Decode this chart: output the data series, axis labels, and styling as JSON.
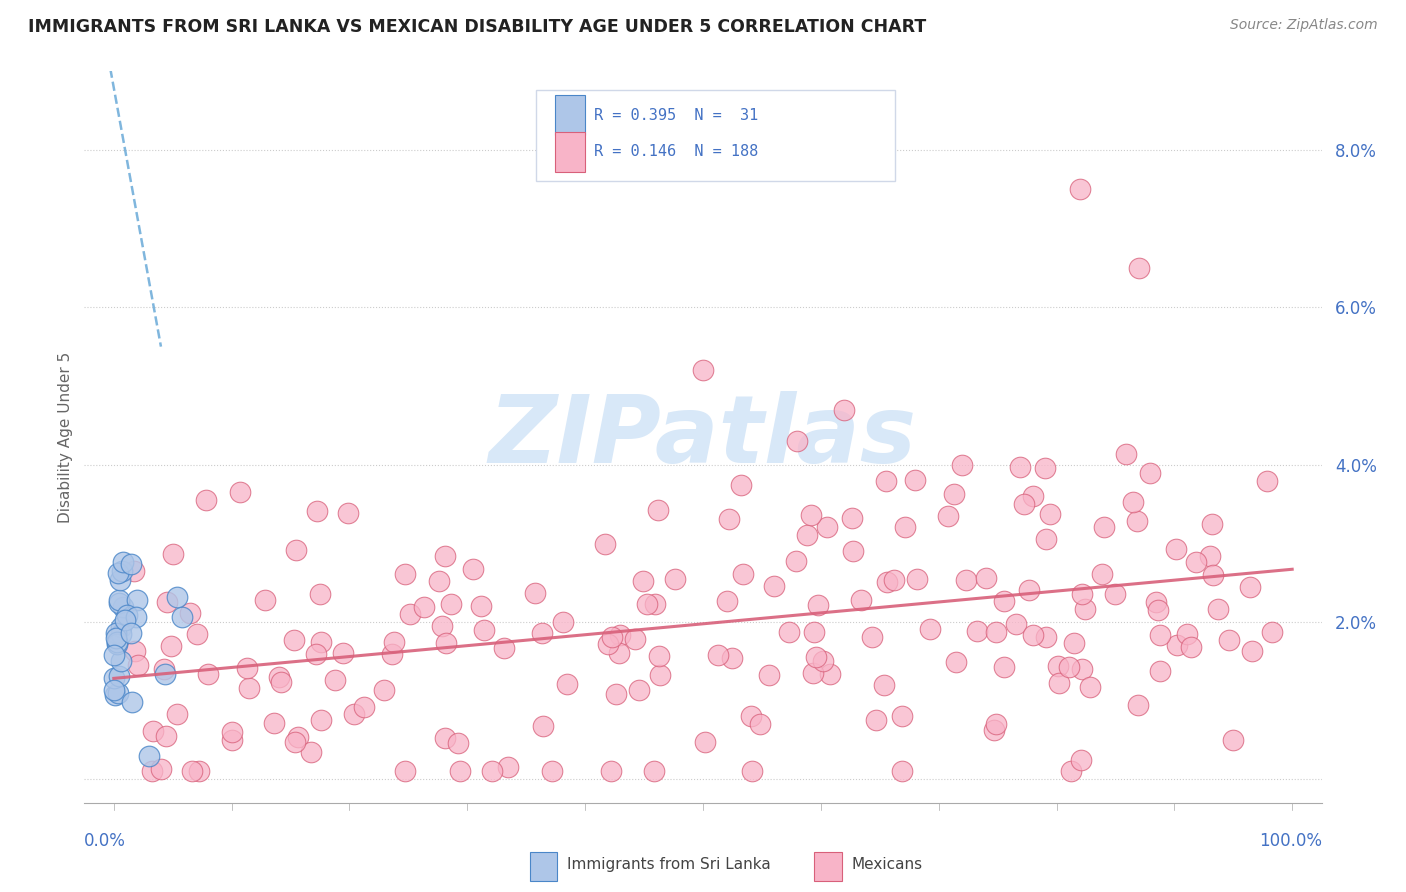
{
  "title": "IMMIGRANTS FROM SRI LANKA VS MEXICAN DISABILITY AGE UNDER 5 CORRELATION CHART",
  "source": "Source: ZipAtlas.com",
  "ylabel": "Disability Age Under 5",
  "sri_lanka_color": "#aec6e8",
  "sri_lanka_edge": "#4a86c8",
  "mexican_color": "#f8b4c8",
  "mexican_edge": "#d8607a",
  "trendline_sri_color": "#6aaad8",
  "trendline_mex_color": "#d8607a",
  "background_color": "#ffffff",
  "watermark_color": "#d8e8f8",
  "legend_box_color": "#f5f8ff",
  "legend_border_color": "#d0d8e8",
  "text_color_blue": "#4472c4",
  "title_color": "#222222",
  "source_color": "#888888",
  "ylabel_color": "#666666",
  "grid_color": "#cccccc",
  "axis_color": "#aaaaaa",
  "xlim": [
    -0.01,
    1.01
  ],
  "ylim": [
    -0.002,
    0.09
  ],
  "yticks": [
    0.0,
    0.02,
    0.04,
    0.06,
    0.08
  ],
  "ytick_labels": [
    "",
    "2.0%",
    "4.0%",
    "6.0%",
    "8.0%"
  ],
  "xtick_left_label": "0.0%",
  "xtick_right_label": "100.0%"
}
